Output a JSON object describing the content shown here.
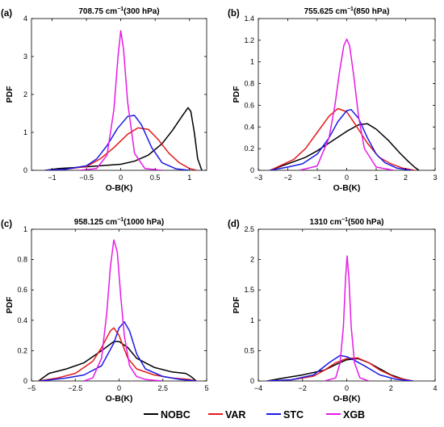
{
  "legend": [
    {
      "name": "NOBC",
      "color": "#000000"
    },
    {
      "name": "VAR",
      "color": "#e41a1c"
    },
    {
      "name": "STC",
      "color": "#1a1ae6"
    },
    {
      "name": "XGB",
      "color": "#e61ae6"
    }
  ],
  "chart_data": [
    {
      "type": "line",
      "panel_label": "(a)",
      "title_main": "708.75 cm",
      "title_sup": "−1",
      "title_tail": "(300 hPa)",
      "xlabel": "O-B(K)",
      "ylabel": "PDF",
      "xlim": [
        -1.3,
        1.25
      ],
      "ylim": [
        0,
        4
      ],
      "xticks": [
        -1,
        -0.5,
        0,
        0.5,
        1
      ],
      "xtick_labels": [
        "−1",
        "−0.5",
        "0",
        "0.5",
        "1"
      ],
      "yticks": [
        0,
        1,
        2,
        3,
        4
      ],
      "ytick_labels": [
        "0",
        "1",
        "2",
        "3",
        "4"
      ],
      "series": [
        {
          "name": "NOBC",
          "x": [
            -1.1,
            -0.9,
            -0.6,
            -0.3,
            0,
            0.2,
            0.4,
            0.6,
            0.75,
            0.9,
            0.98,
            1.02,
            1.07,
            1.12,
            1.18
          ],
          "y": [
            0,
            0.05,
            0.08,
            0.12,
            0.16,
            0.24,
            0.4,
            0.7,
            1.05,
            1.45,
            1.65,
            1.55,
            1.0,
            0.3,
            0
          ]
        },
        {
          "name": "VAR",
          "x": [
            -1.1,
            -0.8,
            -0.5,
            -0.3,
            -0.1,
            0.1,
            0.25,
            0.4,
            0.55,
            0.7,
            0.85,
            1.0,
            1.1
          ],
          "y": [
            0,
            0.03,
            0.1,
            0.3,
            0.6,
            0.95,
            1.12,
            1.08,
            0.8,
            0.45,
            0.2,
            0.05,
            0
          ]
        },
        {
          "name": "STC",
          "x": [
            -1.1,
            -0.8,
            -0.5,
            -0.35,
            -0.2,
            -0.05,
            0.1,
            0.2,
            0.3,
            0.45,
            0.6,
            0.8,
            1.0
          ],
          "y": [
            0,
            0.03,
            0.12,
            0.3,
            0.65,
            1.1,
            1.42,
            1.45,
            1.2,
            0.6,
            0.2,
            0.04,
            0
          ]
        },
        {
          "name": "XGB",
          "x": [
            -0.6,
            -0.35,
            -0.2,
            -0.1,
            -0.04,
            0,
            0.04,
            0.1,
            0.2,
            0.35,
            0.6
          ],
          "y": [
            0,
            0.05,
            0.4,
            1.6,
            3.0,
            3.68,
            3.2,
            1.8,
            0.45,
            0.05,
            0
          ]
        }
      ]
    },
    {
      "type": "line",
      "panel_label": "(b)",
      "title_main": "755.625 cm",
      "title_sup": "−1",
      "title_tail": "(850 hPa)",
      "xlabel": "O-B(K)",
      "ylabel": "PDF",
      "xlim": [
        -3,
        3
      ],
      "ylim": [
        0,
        1.4
      ],
      "xticks": [
        -3,
        -2,
        -1,
        0,
        1,
        2,
        3
      ],
      "xtick_labels": [
        "−3",
        "−2",
        "−1",
        "0",
        "1",
        "2",
        "3"
      ],
      "yticks": [
        0,
        0.2,
        0.4,
        0.6,
        0.8,
        1,
        1.2,
        1.4
      ],
      "ytick_labels": [
        "0",
        "0.2",
        "0.4",
        "0.6",
        "0.8",
        "1",
        "1.2",
        "1.4"
      ],
      "series": [
        {
          "name": "NOBC",
          "x": [
            -2.6,
            -2.2,
            -1.8,
            -1.4,
            -1.0,
            -0.5,
            0,
            0.4,
            0.7,
            1.0,
            1.4,
            1.8,
            2.1,
            2.3,
            2.45
          ],
          "y": [
            0,
            0.04,
            0.08,
            0.12,
            0.18,
            0.27,
            0.36,
            0.42,
            0.43,
            0.38,
            0.28,
            0.16,
            0.08,
            0.03,
            0
          ]
        },
        {
          "name": "VAR",
          "x": [
            -2.6,
            -2.2,
            -1.8,
            -1.4,
            -1.0,
            -0.6,
            -0.3,
            0,
            0.3,
            0.7,
            1.1,
            1.5,
            1.9,
            2.3
          ],
          "y": [
            0,
            0.05,
            0.1,
            0.2,
            0.35,
            0.5,
            0.57,
            0.54,
            0.42,
            0.25,
            0.12,
            0.06,
            0.02,
            0
          ]
        },
        {
          "name": "STC",
          "x": [
            -2.6,
            -2.0,
            -1.5,
            -1.0,
            -0.6,
            -0.3,
            0,
            0.15,
            0.4,
            0.7,
            1.0,
            1.3,
            1.7,
            2.2
          ],
          "y": [
            0,
            0.03,
            0.06,
            0.15,
            0.3,
            0.45,
            0.55,
            0.56,
            0.48,
            0.3,
            0.15,
            0.07,
            0.02,
            0
          ]
        },
        {
          "name": "XGB",
          "x": [
            -1.6,
            -1.0,
            -0.6,
            -0.4,
            -0.25,
            -0.1,
            0,
            0.1,
            0.25,
            0.4,
            0.6,
            1.0,
            1.6
          ],
          "y": [
            0,
            0.04,
            0.3,
            0.6,
            0.9,
            1.15,
            1.21,
            1.15,
            0.85,
            0.5,
            0.2,
            0.03,
            0
          ]
        }
      ]
    },
    {
      "type": "line",
      "panel_label": "(c)",
      "title_main": "958.125 cm",
      "title_sup": "−1",
      "title_tail": "(1000 hPa)",
      "xlabel": "O-B(K)",
      "ylabel": "PDF",
      "xlim": [
        -5,
        5
      ],
      "ylim": [
        0,
        1
      ],
      "xticks": [
        -5,
        -2.5,
        0,
        2.5,
        5
      ],
      "xtick_labels": [
        "−5",
        "−2.5",
        "0",
        "2.5",
        "5"
      ],
      "yticks": [
        0,
        0.2,
        0.4,
        0.6,
        0.8,
        1
      ],
      "ytick_labels": [
        "0",
        "0.2",
        "0.4",
        "0.6",
        "0.8",
        "1"
      ],
      "series": [
        {
          "name": "NOBC",
          "x": [
            -4.6,
            -4.0,
            -3.0,
            -2.0,
            -1.0,
            -0.3,
            0,
            0.5,
            1.0,
            2.0,
            3.0,
            3.8,
            4.1,
            4.4
          ],
          "y": [
            0,
            0.05,
            0.08,
            0.12,
            0.2,
            0.26,
            0.26,
            0.22,
            0.15,
            0.09,
            0.06,
            0.05,
            0.03,
            0
          ]
        },
        {
          "name": "VAR",
          "x": [
            -4.6,
            -3.5,
            -2.5,
            -1.5,
            -1.0,
            -0.5,
            -0.3,
            0,
            0.5,
            1.0,
            2.0,
            3.0,
            4.0,
            4.4
          ],
          "y": [
            0,
            0.02,
            0.05,
            0.13,
            0.22,
            0.33,
            0.35,
            0.3,
            0.15,
            0.08,
            0.04,
            0.02,
            0.01,
            0
          ]
        },
        {
          "name": "STC",
          "x": [
            -4.5,
            -3.0,
            -2.0,
            -1.0,
            -0.3,
            0,
            0.3,
            0.6,
            1.0,
            1.5,
            2.5,
            3.5,
            4.4
          ],
          "y": [
            0,
            0.02,
            0.04,
            0.1,
            0.25,
            0.35,
            0.39,
            0.33,
            0.18,
            0.08,
            0.03,
            0.01,
            0
          ]
        },
        {
          "name": "XGB",
          "x": [
            -2.0,
            -1.5,
            -1.0,
            -0.7,
            -0.5,
            -0.3,
            -0.1,
            0.1,
            0.3,
            0.6,
            1.0,
            1.5,
            2.0,
            2.5
          ],
          "y": [
            0,
            0.02,
            0.15,
            0.45,
            0.75,
            0.93,
            0.85,
            0.55,
            0.3,
            0.1,
            0.03,
            0.01,
            0.005,
            0
          ]
        }
      ]
    },
    {
      "type": "line",
      "panel_label": "(d)",
      "title_main": "1310 cm",
      "title_sup": "−1",
      "title_tail": "(500 hPa)",
      "xlabel": "O-B(K)",
      "ylabel": "PDF",
      "xlim": [
        -4,
        4
      ],
      "ylim": [
        0,
        2.5
      ],
      "xticks": [
        -4,
        -2,
        0,
        2,
        4
      ],
      "xtick_labels": [
        "−4",
        "−2",
        "0",
        "2",
        "4"
      ],
      "yticks": [
        0,
        0.5,
        1,
        1.5,
        2,
        2.5
      ],
      "ytick_labels": [
        "0",
        "0.5",
        "1",
        "1.5",
        "2",
        "2.5"
      ],
      "series": [
        {
          "name": "NOBC",
          "x": [
            -3.6,
            -3.0,
            -2.0,
            -1.0,
            -0.5,
            0,
            0.5,
            1.0,
            2.0,
            2.8
          ],
          "y": [
            0,
            0.04,
            0.1,
            0.18,
            0.27,
            0.35,
            0.37,
            0.3,
            0.1,
            0
          ]
        },
        {
          "name": "VAR",
          "x": [
            -3.6,
            -2.5,
            -1.5,
            -1.0,
            -0.5,
            0,
            0.5,
            1.0,
            1.5,
            2.2,
            3.0
          ],
          "y": [
            0,
            0.02,
            0.08,
            0.18,
            0.3,
            0.37,
            0.38,
            0.3,
            0.18,
            0.06,
            0
          ]
        },
        {
          "name": "STC",
          "x": [
            -3.6,
            -2.5,
            -1.5,
            -0.8,
            -0.3,
            0,
            0.3,
            0.8,
            1.5,
            2.2,
            3.0
          ],
          "y": [
            0,
            0.02,
            0.1,
            0.3,
            0.42,
            0.4,
            0.35,
            0.25,
            0.1,
            0.03,
            0
          ]
        },
        {
          "name": "XGB",
          "x": [
            -1.0,
            -0.5,
            -0.3,
            -0.15,
            -0.05,
            0.02,
            0.1,
            0.2,
            0.35,
            0.6,
            1.0
          ],
          "y": [
            0,
            0.05,
            0.3,
            0.9,
            1.7,
            2.06,
            1.7,
            0.9,
            0.3,
            0.05,
            0
          ]
        }
      ]
    }
  ]
}
